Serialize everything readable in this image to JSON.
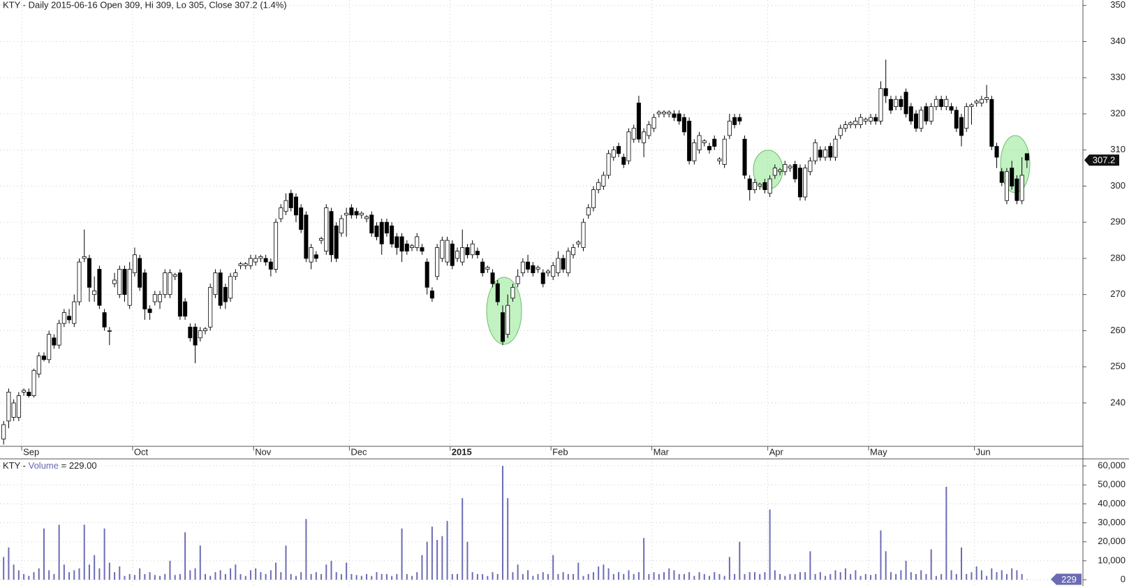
{
  "chart_data": [
    {
      "type": "candlestick",
      "title": "KTY - Daily 2015-06-16 Open 309, Hi 309, Lo 305, Close 307.2 (1.4%)",
      "categories": [
        null,
        null,
        null,
        null,
        "Sep",
        null,
        null,
        null,
        null,
        null,
        null,
        null,
        null,
        null,
        null,
        null,
        null,
        null,
        null,
        null,
        null,
        null,
        null,
        null,
        null,
        null,
        "Oct",
        null,
        null,
        null,
        null,
        null,
        null,
        null,
        null,
        null,
        null,
        null,
        null,
        null,
        null,
        null,
        null,
        null,
        null,
        null,
        null,
        null,
        null,
        null,
        "Nov",
        null,
        null,
        null,
        null,
        null,
        null,
        null,
        null,
        null,
        null,
        null,
        null,
        null,
        null,
        null,
        null,
        null,
        null,
        "Dec",
        null,
        null,
        null,
        null,
        null,
        null,
        null,
        null,
        null,
        null,
        null,
        null,
        null,
        null,
        null,
        null,
        null,
        null,
        null,
        "2015",
        null,
        null,
        null,
        null,
        null,
        null,
        null,
        null,
        null,
        null,
        null,
        null,
        null,
        null,
        null,
        null,
        null,
        null,
        null,
        "Feb",
        null,
        null,
        null,
        null,
        null,
        null,
        null,
        null,
        null,
        null,
        null,
        null,
        null,
        null,
        null,
        null,
        null,
        null,
        null,
        "Mar",
        null,
        null,
        null,
        null,
        null,
        null,
        null,
        null,
        null,
        null,
        null,
        null,
        null,
        null,
        null,
        null,
        null,
        null,
        null,
        null,
        null,
        null,
        "Apr",
        null,
        null,
        null,
        null,
        null,
        null,
        null,
        null,
        null,
        null,
        null,
        null,
        null,
        null,
        null,
        null,
        null,
        null,
        null,
        "May",
        null,
        null,
        null,
        null,
        null,
        null,
        null,
        null,
        null,
        null,
        null,
        null,
        null,
        null,
        null,
        null,
        null,
        null,
        null,
        null,
        "Jun",
        null,
        null,
        null,
        null,
        null,
        null,
        null,
        null,
        null,
        null
      ],
      "open": [
        230,
        235,
        236,
        236,
        243,
        243,
        242,
        248,
        253,
        252,
        258,
        256,
        262,
        264,
        262,
        268,
        280,
        280,
        270,
        277,
        265,
        260,
        273,
        270,
        277,
        267,
        276,
        280,
        276,
        266,
        268,
        268,
        270,
        270,
        275,
        276,
        268,
        261,
        261,
        258,
        260,
        261,
        270,
        276,
        272,
        269,
        275,
        278,
        278,
        278,
        279,
        280,
        280,
        279,
        277,
        291,
        293,
        298,
        297,
        294,
        292,
        279,
        281,
        285,
        282,
        293,
        289,
        287,
        292,
        294,
        293,
        292,
        291,
        292,
        289,
        290,
        290,
        289,
        286,
        286,
        284,
        283,
        283,
        283,
        279,
        271,
        275,
        280,
        279,
        284,
        280,
        279,
        283,
        281,
        282,
        279,
        277,
        276,
        273,
        265,
        259,
        269,
        273,
        276,
        279,
        278,
        277,
        276,
        276,
        275,
        276,
        280,
        276,
        281,
        284,
        283,
        292,
        294,
        299,
        300,
        303,
        308,
        311,
        308,
        307,
        313,
        323,
        312,
        314,
        316,
        320,
        320,
        320,
        320,
        320,
        319,
        318,
        307,
        310,
        312,
        311,
        313,
        307,
        306,
        314,
        319,
        319,
        313,
        302,
        299,
        300,
        301,
        298,
        303,
        304,
        304,
        305,
        306,
        305,
        297,
        304,
        307,
        310,
        308,
        311,
        308,
        314,
        316,
        317,
        317,
        317,
        318,
        318,
        319,
        318,
        327,
        324,
        322,
        324,
        326,
        322,
        320,
        316,
        322,
        318,
        322,
        324,
        322,
        322,
        321,
        319,
        316,
        322,
        323,
        323,
        324,
        324,
        311,
        304,
        296,
        305,
        302,
        296,
        309
      ],
      "high": [
        235,
        244,
        241,
        243,
        244,
        244,
        249.5,
        254,
        254,
        260,
        259,
        263,
        266,
        266,
        270,
        280,
        288,
        281,
        275,
        278,
        266,
        261,
        276,
        278,
        278,
        279,
        283,
        281,
        277,
        267,
        271,
        271,
        277,
        277,
        276,
        277,
        269,
        262,
        262,
        261,
        261,
        273,
        277,
        277,
        273,
        276,
        277,
        279,
        279,
        281,
        281,
        281,
        281,
        280,
        291,
        295,
        298,
        299,
        298,
        295,
        293,
        284,
        282,
        286,
        295,
        294,
        290,
        292,
        294,
        295,
        294,
        293,
        292,
        293,
        290,
        291,
        291,
        290,
        287,
        287,
        285,
        284,
        287,
        284,
        280,
        272,
        284,
        286,
        286,
        285,
        283,
        288,
        284,
        285,
        283,
        280,
        278,
        277,
        274,
        267,
        270,
        273,
        277,
        280,
        281,
        279,
        278,
        277,
        277,
        279,
        282,
        281,
        283,
        284,
        285,
        291,
        295,
        300,
        302,
        304,
        310,
        311,
        312,
        309,
        316,
        317,
        325,
        316,
        318,
        320,
        321,
        321,
        321,
        321,
        321,
        320,
        319,
        313,
        315,
        313,
        312,
        314,
        308,
        314,
        320,
        320,
        320,
        314,
        303,
        302,
        301,
        302,
        303,
        306,
        305,
        307,
        306,
        307,
        306,
        306,
        308,
        313,
        311,
        311,
        312,
        314,
        317,
        318,
        318,
        319,
        320,
        319,
        320,
        320,
        329,
        335,
        325,
        325,
        325,
        327,
        323,
        321,
        322,
        323,
        323,
        325,
        325,
        325,
        323,
        322,
        320,
        323,
        323,
        324,
        325,
        328,
        325,
        312,
        305,
        305,
        307,
        303,
        308,
        309
      ],
      "low": [
        228.5,
        233,
        235,
        235,
        242,
        241.5,
        241.5,
        247,
        251.5,
        251,
        255,
        255,
        261,
        262,
        261,
        267,
        279,
        268,
        268,
        266,
        260,
        256,
        272,
        269,
        268,
        266,
        275,
        271,
        263,
        263,
        267,
        266,
        269,
        269,
        274,
        263,
        263,
        257,
        251,
        257,
        259,
        260,
        269,
        266,
        266,
        268,
        274,
        277,
        277,
        277,
        278,
        279,
        278,
        275,
        276,
        290,
        292,
        293,
        290,
        287,
        279,
        277,
        279,
        284,
        281,
        279,
        279,
        286,
        286,
        291,
        291,
        291,
        290,
        286,
        285,
        281,
        286,
        283,
        281,
        279,
        281,
        282,
        282,
        281,
        270,
        268,
        274,
        279,
        278,
        277,
        279,
        278,
        280,
        280,
        280,
        275,
        276,
        272,
        267,
        256,
        258,
        268,
        272,
        275,
        276,
        275,
        276,
        272,
        275,
        274,
        275,
        276,
        275,
        280,
        283,
        282,
        291,
        293,
        298,
        299,
        302,
        307,
        308,
        305,
        306,
        312,
        312,
        308,
        313,
        315,
        319,
        319,
        319,
        318,
        317,
        314,
        306,
        306,
        309,
        311,
        309,
        310,
        306,
        305,
        313,
        316,
        317,
        302,
        296,
        298,
        299,
        298,
        297,
        302,
        303,
        303,
        304,
        301,
        296,
        296,
        303,
        306,
        307,
        307,
        307,
        307,
        313,
        315,
        316,
        316,
        316,
        317,
        317,
        317,
        317,
        323,
        320,
        321,
        321,
        319,
        317,
        315,
        315,
        317,
        317,
        321,
        321,
        321,
        320,
        315,
        311,
        315,
        317,
        322,
        322,
        323,
        310,
        305,
        300,
        295,
        299,
        295,
        295,
        305
      ],
      "close": [
        234,
        243,
        240,
        242,
        243.5,
        242,
        249,
        253,
        252,
        259,
        256,
        262,
        265,
        263,
        268,
        279,
        280.5,
        272,
        271,
        267,
        261,
        260,
        274,
        277,
        270,
        277,
        281,
        272,
        266,
        265,
        270,
        270,
        276,
        276,
        275.5,
        264,
        264,
        258,
        256,
        260,
        260.5,
        272,
        276,
        267,
        268,
        275,
        276,
        278.5,
        278.5,
        280,
        280,
        280.5,
        279,
        277,
        290,
        294,
        296,
        294,
        292,
        288,
        280,
        283,
        280,
        285.5,
        294,
        281,
        280,
        291,
        292.5,
        292,
        292,
        292.5,
        291.5,
        287,
        286,
        284,
        287,
        284,
        283,
        282,
        282,
        283.5,
        286,
        282,
        272,
        269,
        283,
        285,
        285,
        278,
        282,
        283,
        281,
        284,
        281,
        276,
        277.5,
        273,
        268,
        257,
        267,
        272,
        275,
        279,
        277,
        276,
        277.5,
        273,
        276.5,
        278,
        280,
        277,
        282,
        283,
        284.5,
        290,
        294,
        299,
        301,
        303,
        309,
        310,
        309,
        306,
        315,
        316,
        313,
        315,
        317,
        319,
        320.5,
        320.5,
        320.5,
        319,
        318,
        315,
        307,
        312,
        314,
        312.5,
        310,
        311,
        307.5,
        313,
        318,
        317,
        318,
        303,
        299,
        301,
        300.5,
        299,
        302,
        305,
        304.5,
        306,
        305.5,
        302,
        297,
        305,
        307,
        312,
        308,
        310,
        308,
        313,
        316,
        317,
        317.5,
        318,
        319,
        318.5,
        319,
        318,
        327,
        325,
        321,
        324,
        322,
        320,
        318,
        316,
        321,
        318,
        322,
        324,
        322,
        324,
        321,
        316,
        314,
        322,
        322.5,
        323.5,
        324,
        324.5,
        311,
        308,
        301,
        304,
        300,
        296,
        303,
        307.2
      ],
      "up_color": "#ffffff",
      "down_color": "#000000",
      "ylim": [
        228,
        351.5
      ],
      "yticks": [
        240,
        250,
        260,
        270,
        280,
        290,
        300,
        310,
        320,
        330,
        340,
        350
      ],
      "grid": true
    },
    {
      "type": "bar",
      "title_symbol": "KTY -",
      "title_field": "Volume",
      "title_value": "= 229.00",
      "values": [
        12000,
        17000,
        8000,
        5000,
        3000,
        2000,
        4000,
        6000,
        27000,
        5000,
        3000,
        29000,
        8000,
        4000,
        5000,
        6000,
        29000,
        8000,
        13000,
        6000,
        27000,
        9000,
        4000,
        7000,
        2000,
        3000,
        2500,
        6000,
        3000,
        4000,
        2500,
        2000,
        3000,
        10000,
        2500,
        3000,
        25000,
        5000,
        6000,
        18000,
        3000,
        2000,
        4000,
        5000,
        3000,
        6000,
        8000,
        3000,
        2000,
        5000,
        6000,
        4000,
        3000,
        5000,
        9000,
        4000,
        18000,
        3000,
        2000,
        4000,
        32000,
        3000,
        4000,
        3000,
        8000,
        10000,
        4000,
        3000,
        9000,
        3000,
        2500,
        2000,
        3000,
        2000,
        4000,
        3000,
        3000,
        2000,
        3000,
        27000,
        3000,
        2000,
        4000,
        13000,
        20000,
        28000,
        21000,
        23000,
        31000,
        3000,
        3000,
        43000,
        20000,
        4000,
        3000,
        3000,
        2000,
        4000,
        3000,
        60000,
        43000,
        4000,
        8000,
        3000,
        5000,
        2000,
        3000,
        4000,
        3000,
        13000,
        3000,
        4000,
        3000,
        3000,
        9000,
        2000,
        3000,
        4000,
        7000,
        8000,
        6000,
        3000,
        4000,
        3000,
        5000,
        3000,
        4000,
        22000,
        3000,
        4000,
        3000,
        4000,
        6000,
        5000,
        3000,
        3000,
        4000,
        2000,
        4000,
        3000,
        2000,
        4000,
        3000,
        2000,
        12000,
        3000,
        20000,
        3000,
        4000,
        4000,
        3000,
        4000,
        37000,
        5000,
        3000,
        2000,
        3000,
        3000,
        4000,
        4000,
        15000,
        3000,
        4000,
        2000,
        3000,
        5000,
        4000,
        6000,
        3000,
        5000,
        2000,
        3000,
        2500,
        3000,
        26000,
        15000,
        4000,
        3000,
        5000,
        10000,
        4000,
        3000,
        5000,
        3000,
        16000,
        2000,
        3000,
        49000,
        5000,
        3000,
        17000,
        3000,
        4000,
        7000,
        5000,
        2000,
        6000,
        4000,
        5000,
        3000,
        6000,
        5000,
        3000,
        229
      ],
      "color": "#6b6bb5",
      "ylim": [
        -3300,
        63700
      ],
      "yticks": [
        0,
        {
          "value": 10000,
          "label": "10,000"
        },
        {
          "value": 20000,
          "label": "20,000"
        },
        {
          "value": 30000,
          "label": "30,000"
        },
        {
          "value": 40000,
          "label": "40,000"
        },
        {
          "value": 50000,
          "label": "50,000"
        },
        {
          "value": 60000,
          "label": "60,000"
        }
      ],
      "grid": true
    }
  ]
}
